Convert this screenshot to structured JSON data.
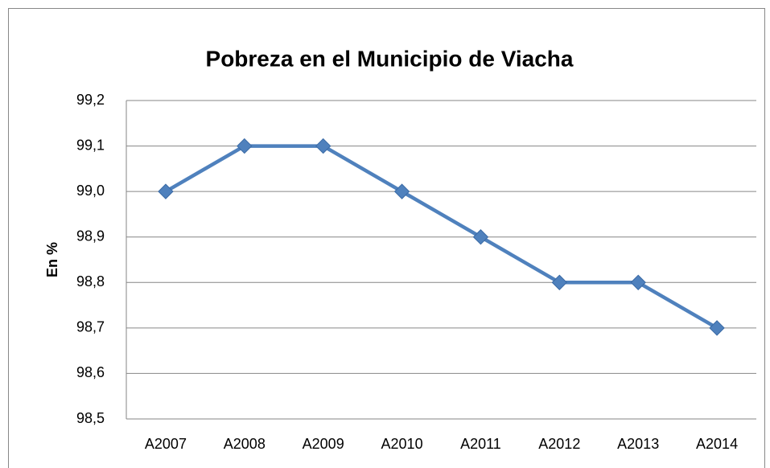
{
  "chart_data": {
    "type": "line",
    "title": "Pobreza en el Municipio de Viacha",
    "y_label": "En %",
    "categories": [
      "A2007",
      "A2008",
      "A2009",
      "A2010",
      "A2011",
      "A2012",
      "A2013",
      "A2014"
    ],
    "series": [
      {
        "name": "Pobreza",
        "color": "#4f81bd",
        "values": [
          99.0,
          99.1,
          99.1,
          99.0,
          98.9,
          98.8,
          98.8,
          98.7
        ]
      }
    ],
    "ylim": [
      98.5,
      99.2
    ],
    "yticks": [
      {
        "value": 98.5,
        "label": "98,5"
      },
      {
        "value": 98.6,
        "label": "98,6"
      },
      {
        "value": 98.7,
        "label": "98,7"
      },
      {
        "value": 98.8,
        "label": "98,8"
      },
      {
        "value": 98.9,
        "label": "98,9"
      },
      {
        "value": 99.0,
        "label": "99,0"
      },
      {
        "value": 99.1,
        "label": "99,1"
      },
      {
        "value": 99.2,
        "label": "99,2"
      }
    ],
    "grid": true,
    "legend": false
  }
}
